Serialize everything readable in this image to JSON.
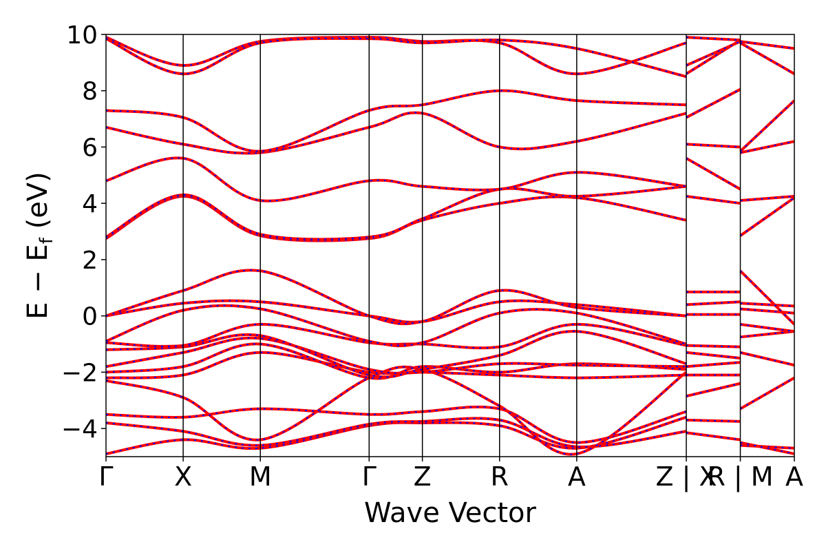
{
  "chart_data": {
    "type": "line",
    "xlabel": "Wave Vector",
    "ylabel": "E − E",
    "ylabel_sub": "f",
    "ylabel_unit": " (eV)",
    "ylim": [
      -5,
      10
    ],
    "yticks": [
      -4,
      -2,
      0,
      2,
      4,
      6,
      8,
      10
    ],
    "ytick_labels": [
      "−4",
      "−2",
      "0",
      "2",
      "4",
      "6",
      "8",
      "10"
    ],
    "kpath": [
      {
        "label": "Γ",
        "x": 0.0
      },
      {
        "label": "X",
        "x": 1.0
      },
      {
        "label": "M",
        "x": 2.0
      },
      {
        "label": "Γ",
        "x": 3.41
      },
      {
        "label": "Z",
        "x": 4.1
      },
      {
        "label": "R",
        "x": 5.1
      },
      {
        "label": "A",
        "x": 6.1
      },
      {
        "label": "Z | X",
        "x": 7.52
      },
      {
        "label": "R | M",
        "x": 8.22
      },
      {
        "label": "A",
        "x": 8.92
      }
    ],
    "xlim": [
      0.0,
      8.92
    ],
    "line_colors": {
      "primary": "#ff0000",
      "overlay": "#0000ff"
    },
    "grid": false,
    "series": [
      {
        "segment": "Γ-X-M-Γ-Z-R-A-Z",
        "points": [
          [
            0,
            -4.9
          ],
          [
            1,
            -4.4
          ],
          [
            2,
            -4.7
          ],
          [
            3.41,
            -3.9
          ],
          [
            4.1,
            -3.8
          ],
          [
            5.1,
            -3.9
          ],
          [
            6.1,
            -4.7
          ],
          [
            7.52,
            -3.6
          ]
        ]
      },
      {
        "segment": "Γ-X-M-Γ-Z-R-A-Z",
        "points": [
          [
            0,
            -3.8
          ],
          [
            1,
            -4.1
          ],
          [
            2,
            -4.6
          ],
          [
            3.41,
            -3.85
          ],
          [
            4.1,
            -3.75
          ],
          [
            5.1,
            -3.7
          ],
          [
            6.1,
            -4.65
          ],
          [
            7.52,
            -4.1
          ]
        ]
      },
      {
        "segment": "Γ-X-M-Γ-Z-R-A-Z",
        "points": [
          [
            0,
            -3.5
          ],
          [
            1,
            -3.6
          ],
          [
            2,
            -3.3
          ],
          [
            3.41,
            -3.5
          ],
          [
            4.1,
            -3.4
          ],
          [
            5.1,
            -3.3
          ],
          [
            6.1,
            -4.5
          ],
          [
            7.52,
            -3.4
          ]
        ]
      },
      {
        "segment": "Γ-X-M-Γ-Z-R-A-Z",
        "points": [
          [
            0,
            -2.3
          ],
          [
            1,
            -2.9
          ],
          [
            2,
            -4.4
          ],
          [
            3.41,
            -2.2
          ],
          [
            4.1,
            -1.9
          ],
          [
            5.1,
            -3.2
          ],
          [
            6.1,
            -4.9
          ],
          [
            7.52,
            -2.0
          ]
        ]
      },
      {
        "segment": "Γ-X-M-Γ-Z-R-A-Z",
        "points": [
          [
            0,
            -2.2
          ],
          [
            1,
            -2.1
          ],
          [
            2,
            -1.3
          ],
          [
            3.41,
            -2.0
          ],
          [
            4.1,
            -2.0
          ],
          [
            5.1,
            -2.1
          ],
          [
            6.1,
            -2.2
          ],
          [
            7.52,
            -2.1
          ]
        ]
      },
      {
        "segment": "Γ-X-M-Γ-Z-R-A-Z",
        "points": [
          [
            0,
            -2.0
          ],
          [
            1,
            -1.8
          ],
          [
            2,
            -1.0
          ],
          [
            3.41,
            -2.2
          ],
          [
            4.1,
            -1.8
          ],
          [
            5.1,
            -2.0
          ],
          [
            6.1,
            -1.7
          ],
          [
            7.52,
            -1.9
          ]
        ]
      },
      {
        "segment": "Γ-X-M-Γ-Z-R-A-Z",
        "points": [
          [
            0,
            -1.8
          ],
          [
            1,
            -1.3
          ],
          [
            2,
            -0.8
          ],
          [
            3.41,
            -1.9
          ],
          [
            4.1,
            -2.0
          ],
          [
            5.1,
            -1.7
          ],
          [
            6.1,
            -1.75
          ],
          [
            7.52,
            -1.8
          ]
        ]
      },
      {
        "segment": "Γ-X-M-Γ-Z-R-A-Z",
        "points": [
          [
            0,
            -1.2
          ],
          [
            1,
            -1.1
          ],
          [
            2,
            -0.7
          ],
          [
            3.41,
            -2.1
          ],
          [
            4.1,
            -1.9
          ],
          [
            5.1,
            -1.4
          ],
          [
            6.1,
            -0.55
          ],
          [
            7.52,
            -1.7
          ]
        ]
      },
      {
        "segment": "Γ-X-M-Γ-Z-R-A-Z",
        "points": [
          [
            0,
            -0.95
          ],
          [
            1,
            -1.05
          ],
          [
            2,
            -0.3
          ],
          [
            3.41,
            -0.95
          ],
          [
            4.1,
            -1.0
          ],
          [
            5.1,
            -1.1
          ],
          [
            6.1,
            -0.3
          ],
          [
            7.52,
            -1.05
          ]
        ]
      },
      {
        "segment": "Γ-X-M-Γ-Z-R-A-Z",
        "points": [
          [
            0,
            -0.9
          ],
          [
            1,
            0.2
          ],
          [
            2,
            0.25
          ],
          [
            3.41,
            -0.9
          ],
          [
            4.1,
            -0.95
          ],
          [
            5.1,
            0.1
          ],
          [
            6.1,
            0.1
          ],
          [
            7.52,
            -1.0
          ]
        ]
      },
      {
        "segment": "Γ-X-M-Γ-Z-R-A-Z",
        "points": [
          [
            0,
            0.0
          ],
          [
            1,
            0.45
          ],
          [
            2,
            0.5
          ],
          [
            3.41,
            0.0
          ],
          [
            4.1,
            -0.2
          ],
          [
            5.1,
            0.5
          ],
          [
            6.1,
            0.4
          ],
          [
            7.52,
            0.0
          ]
        ]
      },
      {
        "segment": "Γ-X-M-Γ-Z-R-A-Z",
        "points": [
          [
            0,
            0.0
          ],
          [
            1,
            0.9
          ],
          [
            2,
            1.6
          ],
          [
            3.41,
            0.0
          ],
          [
            4.1,
            -0.2
          ],
          [
            5.1,
            0.9
          ],
          [
            6.1,
            0.3
          ],
          [
            7.52,
            0.0
          ]
        ]
      },
      {
        "segment": "Γ-X-M-Γ-Z-R-A-Z",
        "points": [
          [
            0,
            2.75
          ],
          [
            1,
            4.25
          ],
          [
            2,
            2.85
          ],
          [
            3.41,
            2.75
          ],
          [
            4.1,
            3.4
          ],
          [
            5.1,
            4.0
          ],
          [
            6.1,
            4.2
          ],
          [
            7.52,
            3.4
          ]
        ]
      },
      {
        "segment": "Γ-X-M-Γ-Z-R-A-Z",
        "points": [
          [
            0,
            2.8
          ],
          [
            1,
            4.3
          ],
          [
            2,
            2.9
          ],
          [
            3.41,
            2.8
          ],
          [
            4.1,
            3.45
          ],
          [
            5.1,
            4.5
          ],
          [
            6.1,
            4.25
          ],
          [
            7.52,
            4.6
          ]
        ]
      },
      {
        "segment": "Γ-X-M-Γ-Z-R-A-Z",
        "points": [
          [
            0,
            4.8
          ],
          [
            1,
            5.6
          ],
          [
            2,
            4.1
          ],
          [
            3.41,
            4.8
          ],
          [
            4.1,
            4.6
          ],
          [
            5.1,
            4.5
          ],
          [
            6.1,
            5.1
          ],
          [
            7.52,
            4.6
          ]
        ]
      },
      {
        "segment": "Γ-X-M-Γ-Z-R-A-Z",
        "points": [
          [
            0,
            6.7
          ],
          [
            1,
            6.1
          ],
          [
            2,
            5.8
          ],
          [
            3.41,
            6.7
          ],
          [
            4.1,
            7.2
          ],
          [
            5.1,
            6.0
          ],
          [
            6.1,
            6.2
          ],
          [
            7.52,
            7.2
          ]
        ]
      },
      {
        "segment": "Γ-X-M-Γ-Z-R-A-Z",
        "points": [
          [
            0,
            7.3
          ],
          [
            1,
            7.05
          ],
          [
            2,
            5.85
          ],
          [
            3.41,
            7.3
          ],
          [
            4.1,
            7.5
          ],
          [
            5.1,
            8.0
          ],
          [
            6.1,
            7.65
          ],
          [
            7.52,
            7.5
          ]
        ]
      },
      {
        "segment": "Γ-X-M-Γ-Z-R-A-Z",
        "points": [
          [
            0,
            9.9
          ],
          [
            1,
            8.9
          ],
          [
            2,
            9.75
          ],
          [
            3.41,
            9.9
          ],
          [
            4.1,
            9.75
          ],
          [
            5.1,
            9.7
          ],
          [
            6.1,
            8.6
          ],
          [
            7.52,
            9.7
          ]
        ]
      },
      {
        "segment": "Γ-X-M-Γ-Z-R-A-Z",
        "points": [
          [
            0,
            9.85
          ],
          [
            1,
            8.6
          ],
          [
            2,
            9.7
          ],
          [
            3.41,
            9.85
          ],
          [
            4.1,
            9.7
          ],
          [
            5.1,
            9.8
          ],
          [
            6.1,
            9.5
          ],
          [
            7.52,
            8.5
          ]
        ]
      },
      {
        "segment": "X-R",
        "points": [
          [
            7.52,
            -4.15
          ],
          [
            8.22,
            -4.4
          ]
        ]
      },
      {
        "segment": "X-R",
        "points": [
          [
            7.52,
            -3.7
          ],
          [
            8.22,
            -3.75
          ]
        ]
      },
      {
        "segment": "X-R",
        "points": [
          [
            7.52,
            -2.85
          ],
          [
            8.22,
            -2.4
          ]
        ]
      },
      {
        "segment": "X-R",
        "points": [
          [
            7.52,
            -2.1
          ],
          [
            8.22,
            -2.1
          ]
        ]
      },
      {
        "segment": "X-R",
        "points": [
          [
            7.52,
            -1.8
          ],
          [
            8.22,
            -1.65
          ]
        ]
      },
      {
        "segment": "X-R",
        "points": [
          [
            7.52,
            -1.3
          ],
          [
            8.22,
            -1.5
          ]
        ]
      },
      {
        "segment": "X-R",
        "points": [
          [
            7.52,
            -1.05
          ],
          [
            8.22,
            -1.1
          ]
        ]
      },
      {
        "segment": "X-R",
        "points": [
          [
            7.52,
            0.05
          ],
          [
            8.22,
            0.05
          ]
        ]
      },
      {
        "segment": "X-R",
        "points": [
          [
            7.52,
            0.4
          ],
          [
            8.22,
            0.5
          ]
        ]
      },
      {
        "segment": "X-R",
        "points": [
          [
            7.52,
            0.85
          ],
          [
            8.22,
            0.85
          ]
        ]
      },
      {
        "segment": "X-R",
        "points": [
          [
            7.52,
            4.25
          ],
          [
            8.22,
            4.0
          ]
        ]
      },
      {
        "segment": "X-R",
        "points": [
          [
            7.52,
            5.6
          ],
          [
            8.22,
            4.5
          ]
        ]
      },
      {
        "segment": "X-R",
        "points": [
          [
            7.52,
            6.1
          ],
          [
            8.22,
            6.0
          ]
        ]
      },
      {
        "segment": "X-R",
        "points": [
          [
            7.52,
            7.05
          ],
          [
            8.22,
            8.05
          ]
        ]
      },
      {
        "segment": "X-R",
        "points": [
          [
            7.52,
            8.6
          ],
          [
            8.22,
            9.8
          ]
        ]
      },
      {
        "segment": "X-R",
        "points": [
          [
            7.52,
            8.9
          ],
          [
            8.22,
            9.75
          ]
        ]
      },
      {
        "segment": "X-R",
        "points": [
          [
            7.52,
            9.9
          ],
          [
            8.22,
            9.8
          ]
        ]
      },
      {
        "segment": "M-A",
        "points": [
          [
            8.22,
            -4.6
          ],
          [
            8.92,
            -4.7
          ]
        ]
      },
      {
        "segment": "M-A",
        "points": [
          [
            8.22,
            -4.5
          ],
          [
            8.92,
            -4.9
          ]
        ]
      },
      {
        "segment": "M-A",
        "points": [
          [
            8.22,
            -3.3
          ],
          [
            8.92,
            -2.2
          ]
        ]
      },
      {
        "segment": "M-A",
        "points": [
          [
            8.22,
            -1.3
          ],
          [
            8.92,
            -1.75
          ]
        ]
      },
      {
        "segment": "M-A",
        "points": [
          [
            8.22,
            -0.75
          ],
          [
            8.92,
            -0.55
          ]
        ]
      },
      {
        "segment": "M-A",
        "points": [
          [
            8.22,
            -0.3
          ],
          [
            8.92,
            -0.55
          ]
        ]
      },
      {
        "segment": "M-A",
        "points": [
          [
            8.22,
            0.25
          ],
          [
            8.92,
            0.1
          ]
        ]
      },
      {
        "segment": "M-A",
        "points": [
          [
            8.22,
            0.45
          ],
          [
            8.92,
            0.35
          ]
        ]
      },
      {
        "segment": "M-A",
        "points": [
          [
            8.22,
            1.6
          ],
          [
            8.92,
            -0.3
          ]
        ]
      },
      {
        "segment": "M-A",
        "points": [
          [
            8.22,
            2.85
          ],
          [
            8.92,
            4.2
          ]
        ]
      },
      {
        "segment": "M-A",
        "points": [
          [
            8.22,
            4.1
          ],
          [
            8.92,
            4.25
          ]
        ]
      },
      {
        "segment": "M-A",
        "points": [
          [
            8.22,
            5.8
          ],
          [
            8.92,
            6.2
          ]
        ]
      },
      {
        "segment": "M-A",
        "points": [
          [
            8.22,
            5.85
          ],
          [
            8.92,
            7.65
          ]
        ]
      },
      {
        "segment": "M-A",
        "points": [
          [
            8.22,
            9.7
          ],
          [
            8.92,
            8.6
          ]
        ]
      },
      {
        "segment": "M-A",
        "points": [
          [
            8.22,
            9.75
          ],
          [
            8.92,
            9.5
          ]
        ]
      }
    ]
  }
}
